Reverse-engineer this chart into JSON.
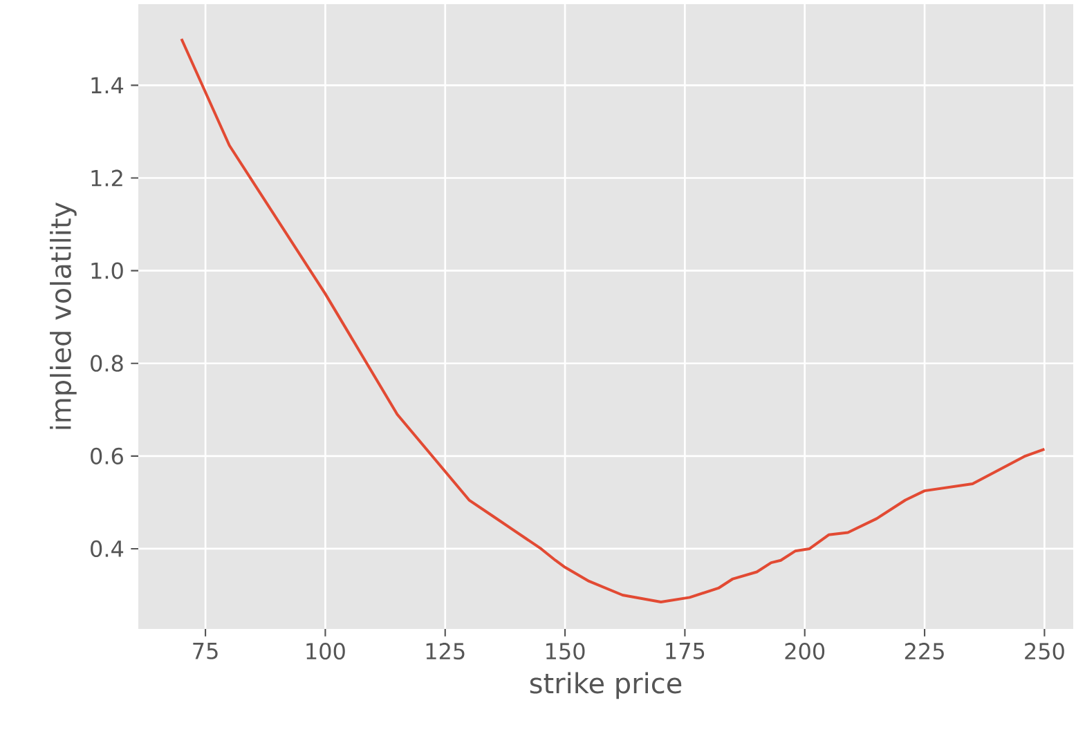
{
  "chart_data": {
    "type": "line",
    "xlabel": "strike price",
    "ylabel": "implied volatility",
    "x": [
      70,
      80,
      100,
      115,
      130,
      135,
      145,
      148,
      150,
      155,
      162,
      170,
      176,
      182,
      185,
      190,
      193,
      195,
      198,
      201,
      205,
      209,
      215,
      221,
      225,
      235,
      246,
      250
    ],
    "series": [
      {
        "color": "#e24a33",
        "values": [
          1.5,
          1.27,
          0.95,
          0.69,
          0.505,
          0.47,
          0.4,
          0.375,
          0.36,
          0.33,
          0.3,
          0.285,
          0.295,
          0.315,
          0.335,
          0.35,
          0.37,
          0.375,
          0.395,
          0.4,
          0.43,
          0.435,
          0.465,
          0.505,
          0.525,
          0.54,
          0.6,
          0.615
        ]
      }
    ],
    "xlim": [
      61,
      256
    ],
    "ylim": [
      0.227,
      1.575
    ],
    "xticks": [
      75,
      100,
      125,
      150,
      175,
      200,
      225,
      250
    ],
    "yticks": [
      {
        "value": 0.4,
        "label": "0.4"
      },
      {
        "value": 0.6,
        "label": "0.6"
      },
      {
        "value": 0.8,
        "label": "0.8"
      },
      {
        "value": 1.0,
        "label": "1.0"
      },
      {
        "value": 1.2,
        "label": "1.2"
      },
      {
        "value": 1.4,
        "label": "1.4"
      }
    ],
    "grid": true,
    "marker": "none",
    "line_style": "solid"
  }
}
